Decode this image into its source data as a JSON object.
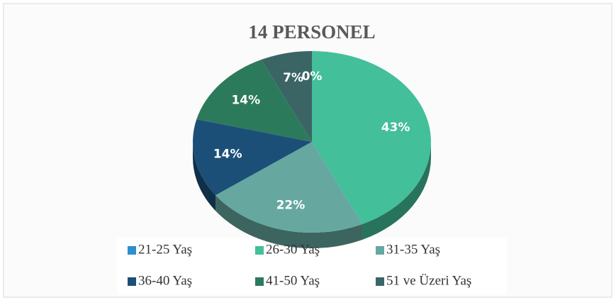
{
  "chart_data": {
    "type": "pie",
    "title": "14 PERSONEL",
    "categories": [
      "21-25 Yaş",
      "26-30 Yaş",
      "31-35 Yaş",
      "36-40 Yaş",
      "41-50 Yaş",
      "51 ve Üzeri Yaş"
    ],
    "values": [
      0,
      43,
      22,
      14,
      14,
      7
    ],
    "value_labels": [
      "0%",
      "43%",
      "22%",
      "14%",
      "14%",
      "7%"
    ],
    "colors": [
      "#2e8fd0",
      "#43bf9a",
      "#66a8a0",
      "#1b4f78",
      "#2c7a5c",
      "#3b6565"
    ],
    "legend": "bottom"
  }
}
